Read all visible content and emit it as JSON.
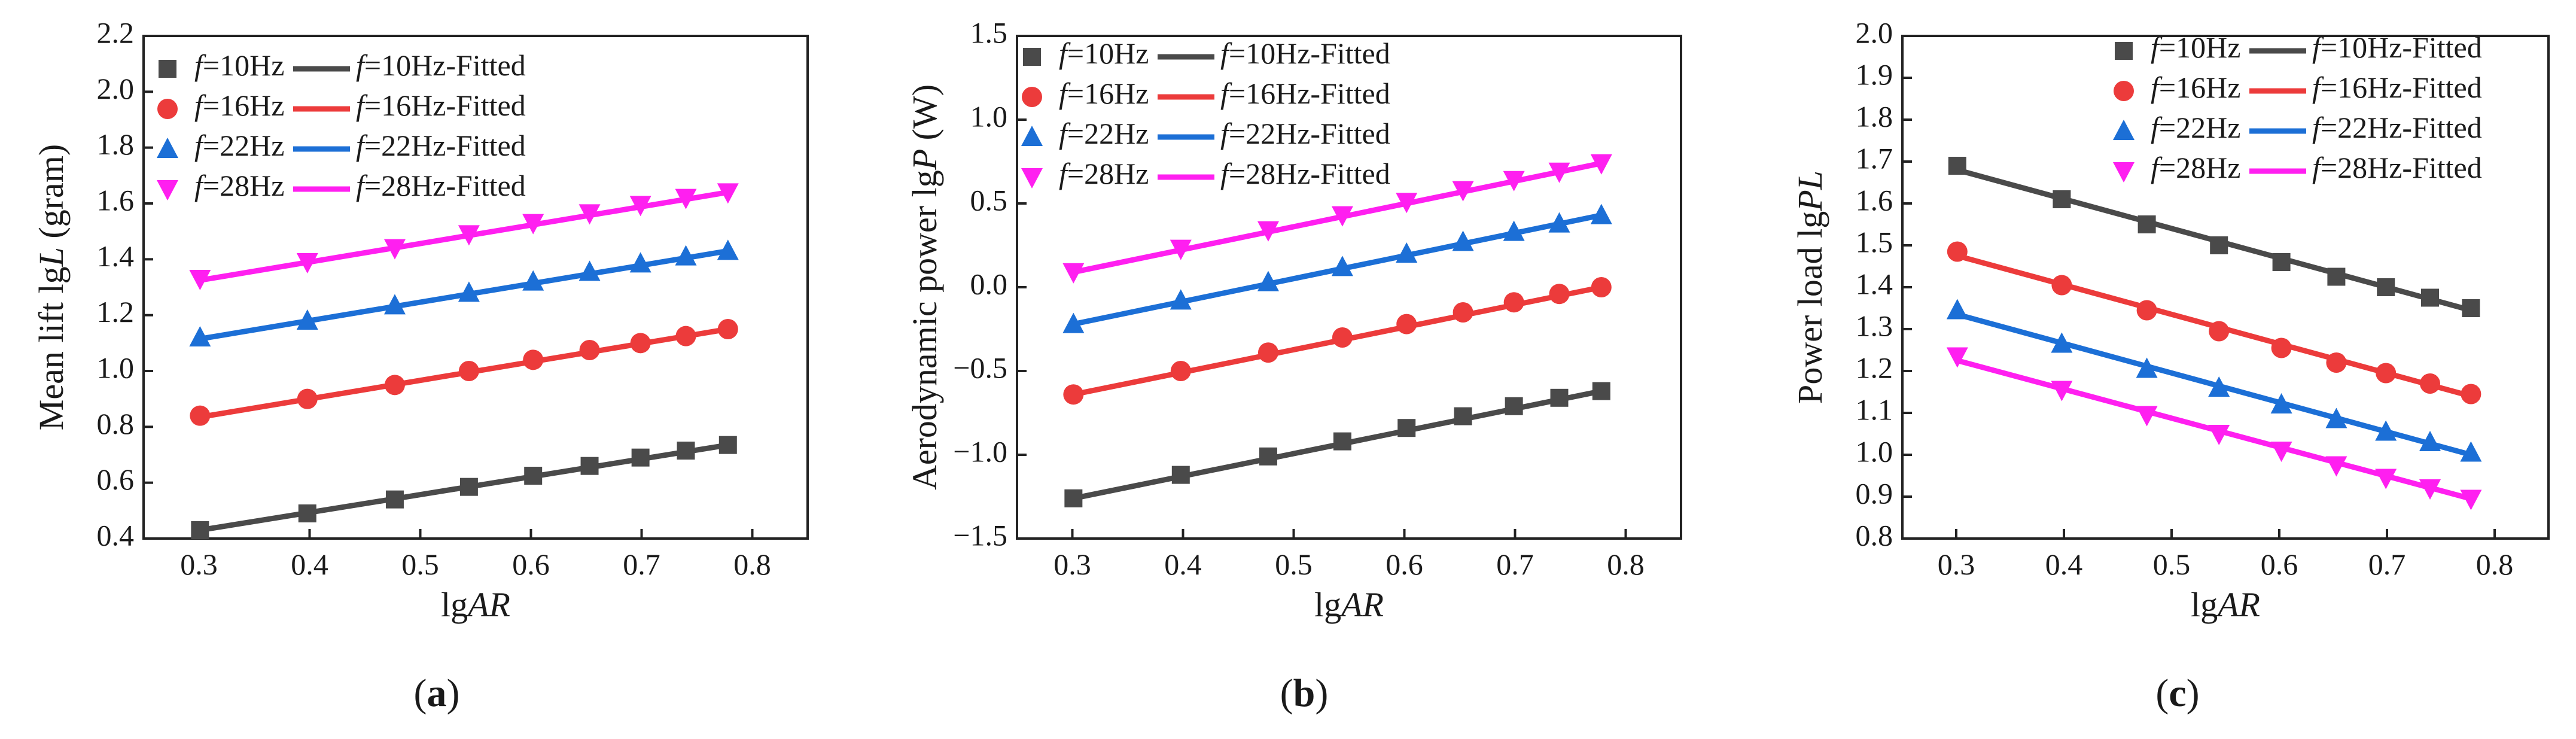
{
  "chart_data": [
    {
      "type": "scatter",
      "panel": "a",
      "caption": "(a)",
      "caption_letter": "a",
      "xlabel": "lgAR",
      "xlabel_parts": [
        "lg",
        "AR"
      ],
      "ylabel": "Mean lift lgL (gram)",
      "ylabel_parts": [
        "Mean lift lg",
        "L",
        " (gram)"
      ],
      "xlim": [
        0.25,
        0.85
      ],
      "ylim": [
        0.4,
        2.2
      ],
      "xticks": [
        0.3,
        0.4,
        0.5,
        0.6,
        0.7,
        0.8
      ],
      "xtick_labels": [
        "0.3",
        "0.4",
        "0.5",
        "0.6",
        "0.7",
        "0.8"
      ],
      "yticks": [
        0.4,
        0.6,
        0.8,
        1.0,
        1.2,
        1.4,
        1.6,
        1.8,
        2.0,
        2.2
      ],
      "ytick_labels": [
        "0.4",
        "0.6",
        "0.8",
        "1.0",
        "1.2",
        "1.4",
        "1.6",
        "1.8",
        "2.0",
        "2.2"
      ],
      "legend_position": "top-center",
      "x": [
        0.301,
        0.398,
        0.477,
        0.544,
        0.602,
        0.653,
        0.699,
        0.74,
        0.778
      ],
      "series": [
        {
          "name": "f=10Hz",
          "fit_name": "f=10Hz-Fitted",
          "color": "#4a4a4a",
          "marker": "square",
          "values": [
            0.43,
            0.49,
            0.54,
            0.585,
            0.625,
            0.66,
            0.69,
            0.715,
            0.735
          ],
          "fit": [
            0.43,
            0.735
          ]
        },
        {
          "name": "f=16Hz",
          "fit_name": "f=16Hz-Fitted",
          "color": "#ec3b3b",
          "marker": "circle",
          "values": [
            0.84,
            0.9,
            0.95,
            1.0,
            1.04,
            1.075,
            1.1,
            1.125,
            1.15
          ],
          "fit": [
            0.835,
            1.15
          ]
        },
        {
          "name": "f=22Hz",
          "fit_name": "f=22Hz-Fitted",
          "color": "#1c6fd6",
          "marker": "triangle-up",
          "values": [
            1.12,
            1.18,
            1.235,
            1.28,
            1.32,
            1.355,
            1.385,
            1.41,
            1.43
          ],
          "fit": [
            1.115,
            1.43
          ]
        },
        {
          "name": "f=28Hz",
          "fit_name": "f=28Hz-Fitted",
          "color": "#ff1ff0",
          "marker": "triangle-down",
          "values": [
            1.33,
            1.39,
            1.44,
            1.49,
            1.53,
            1.565,
            1.595,
            1.62,
            1.64
          ],
          "fit": [
            1.325,
            1.64
          ]
        }
      ]
    },
    {
      "type": "scatter",
      "panel": "b",
      "caption": "(b)",
      "caption_letter": "b",
      "xlabel": "lgAR",
      "xlabel_parts": [
        "lg",
        "AR"
      ],
      "ylabel": "Aerodynamic power lgP (W)",
      "ylabel_parts": [
        "Aerodynamic power lg",
        "P",
        " (W)"
      ],
      "xlim": [
        0.25,
        0.85
      ],
      "ylim": [
        -1.5,
        1.5
      ],
      "xticks": [
        0.3,
        0.4,
        0.5,
        0.6,
        0.7,
        0.8
      ],
      "xtick_labels": [
        "0.3",
        "0.4",
        "0.5",
        "0.6",
        "0.7",
        "0.8"
      ],
      "yticks": [
        -1.5,
        -1.0,
        -0.5,
        0.0,
        0.5,
        1.0,
        1.5
      ],
      "ytick_labels": [
        "−1.5",
        "−1.0",
        "−0.5",
        "0.0",
        "0.5",
        "1.0",
        "1.5"
      ],
      "legend_position": "top-left",
      "x": [
        0.301,
        0.398,
        0.477,
        0.544,
        0.602,
        0.653,
        0.699,
        0.74,
        0.778
      ],
      "series": [
        {
          "name": "f=10Hz",
          "fit_name": "f=10Hz-Fitted",
          "color": "#4a4a4a",
          "marker": "square",
          "values": [
            -1.26,
            -1.12,
            -1.01,
            -0.92,
            -0.84,
            -0.77,
            -0.71,
            -0.66,
            -0.62
          ],
          "fit": [
            -1.26,
            -0.62
          ]
        },
        {
          "name": "f=16Hz",
          "fit_name": "f=16Hz-Fitted",
          "color": "#ec3b3b",
          "marker": "circle",
          "values": [
            -0.64,
            -0.5,
            -0.39,
            -0.3,
            -0.22,
            -0.15,
            -0.09,
            -0.04,
            0.0
          ],
          "fit": [
            -0.64,
            0.0
          ]
        },
        {
          "name": "f=22Hz",
          "fit_name": "f=22Hz-Fitted",
          "color": "#1c6fd6",
          "marker": "triangle-up",
          "values": [
            -0.22,
            -0.08,
            0.03,
            0.12,
            0.2,
            0.27,
            0.33,
            0.38,
            0.43
          ],
          "fit": [
            -0.22,
            0.43
          ]
        },
        {
          "name": "f=28Hz",
          "fit_name": "f=28Hz-Fitted",
          "color": "#ff1ff0",
          "marker": "triangle-down",
          "values": [
            0.09,
            0.23,
            0.34,
            0.43,
            0.51,
            0.58,
            0.64,
            0.69,
            0.74
          ],
          "fit": [
            0.09,
            0.74
          ]
        }
      ]
    },
    {
      "type": "scatter",
      "panel": "c",
      "caption": "(c)",
      "caption_letter": "c",
      "xlabel": "lgAR",
      "xlabel_parts": [
        "lg",
        "AR"
      ],
      "ylabel": "Power load lgPL",
      "ylabel_parts": [
        "Power load lg",
        "PL",
        ""
      ],
      "xlim": [
        0.25,
        0.85
      ],
      "ylim": [
        0.8,
        2.0
      ],
      "xticks": [
        0.3,
        0.4,
        0.5,
        0.6,
        0.7,
        0.8
      ],
      "xtick_labels": [
        "0.3",
        "0.4",
        "0.5",
        "0.6",
        "0.7",
        "0.8"
      ],
      "yticks": [
        0.8,
        0.9,
        1.0,
        1.1,
        1.2,
        1.3,
        1.4,
        1.5,
        1.6,
        1.7,
        1.8,
        1.9,
        2.0
      ],
      "ytick_labels": [
        "0.8",
        "0.9",
        "1.0",
        "1.1",
        "1.2",
        "1.3",
        "1.4",
        "1.5",
        "1.6",
        "1.7",
        "1.8",
        "1.9",
        "2.0"
      ],
      "legend_position": "top-right",
      "x": [
        0.301,
        0.398,
        0.477,
        0.544,
        0.602,
        0.653,
        0.699,
        0.74,
        0.778
      ],
      "series": [
        {
          "name": "f=10Hz",
          "fit_name": "f=10Hz-Fitted",
          "color": "#4a4a4a",
          "marker": "square",
          "values": [
            1.69,
            1.61,
            1.55,
            1.5,
            1.46,
            1.425,
            1.4,
            1.375,
            1.35
          ],
          "fit": [
            1.68,
            1.345
          ]
        },
        {
          "name": "f=16Hz",
          "fit_name": "f=16Hz-Fitted",
          "color": "#ec3b3b",
          "marker": "circle",
          "values": [
            1.485,
            1.405,
            1.345,
            1.295,
            1.255,
            1.22,
            1.195,
            1.17,
            1.145
          ],
          "fit": [
            1.475,
            1.14
          ]
        },
        {
          "name": "f=22Hz",
          "fit_name": "f=22Hz-Fitted",
          "color": "#1c6fd6",
          "marker": "triangle-up",
          "values": [
            1.345,
            1.265,
            1.205,
            1.16,
            1.12,
            1.085,
            1.055,
            1.03,
            1.005
          ],
          "fit": [
            1.335,
            1.0
          ]
        },
        {
          "name": "f=28Hz",
          "fit_name": "f=28Hz-Fitted",
          "color": "#ff1ff0",
          "marker": "triangle-down",
          "values": [
            1.235,
            1.155,
            1.095,
            1.05,
            1.01,
            0.975,
            0.945,
            0.92,
            0.895
          ],
          "fit": [
            1.225,
            0.895
          ]
        }
      ]
    }
  ]
}
